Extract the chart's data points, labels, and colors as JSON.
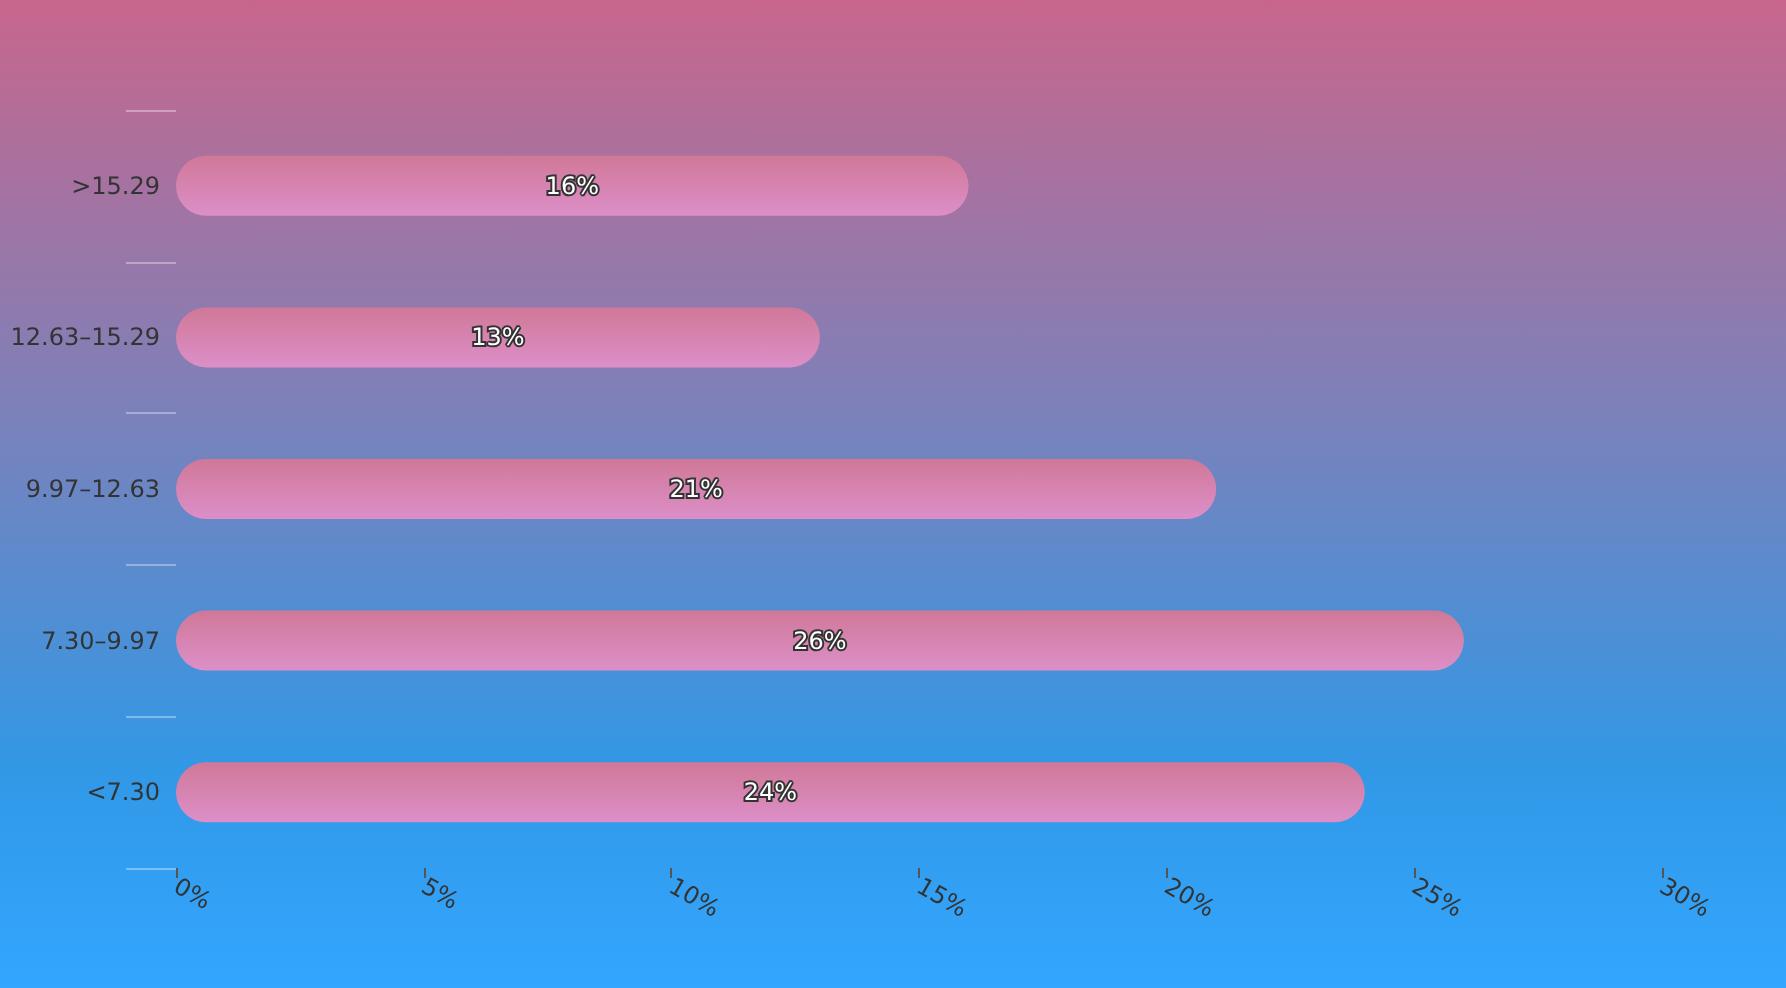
{
  "chart_data": {
    "type": "bar",
    "orientation": "horizontal",
    "categories": [
      ">15.29",
      "12.63–15.29",
      "9.97–12.63",
      "7.30–9.97",
      "<7.30"
    ],
    "values": [
      16,
      13,
      21,
      26,
      24
    ],
    "value_labels": [
      "16%",
      "13%",
      "21%",
      "26%",
      "24%"
    ],
    "color": "#dc8fc8",
    "xlim": [
      0,
      30
    ],
    "xticks": [
      {
        "value": 0,
        "label": "0%"
      },
      {
        "value": 5,
        "label": "5%"
      },
      {
        "value": 10,
        "label": "10%"
      },
      {
        "value": 15,
        "label": "15%"
      },
      {
        "value": 20,
        "label": "20%"
      },
      {
        "value": 25,
        "label": "25%"
      },
      {
        "value": 30,
        "label": "30%"
      }
    ],
    "grid": false
  }
}
